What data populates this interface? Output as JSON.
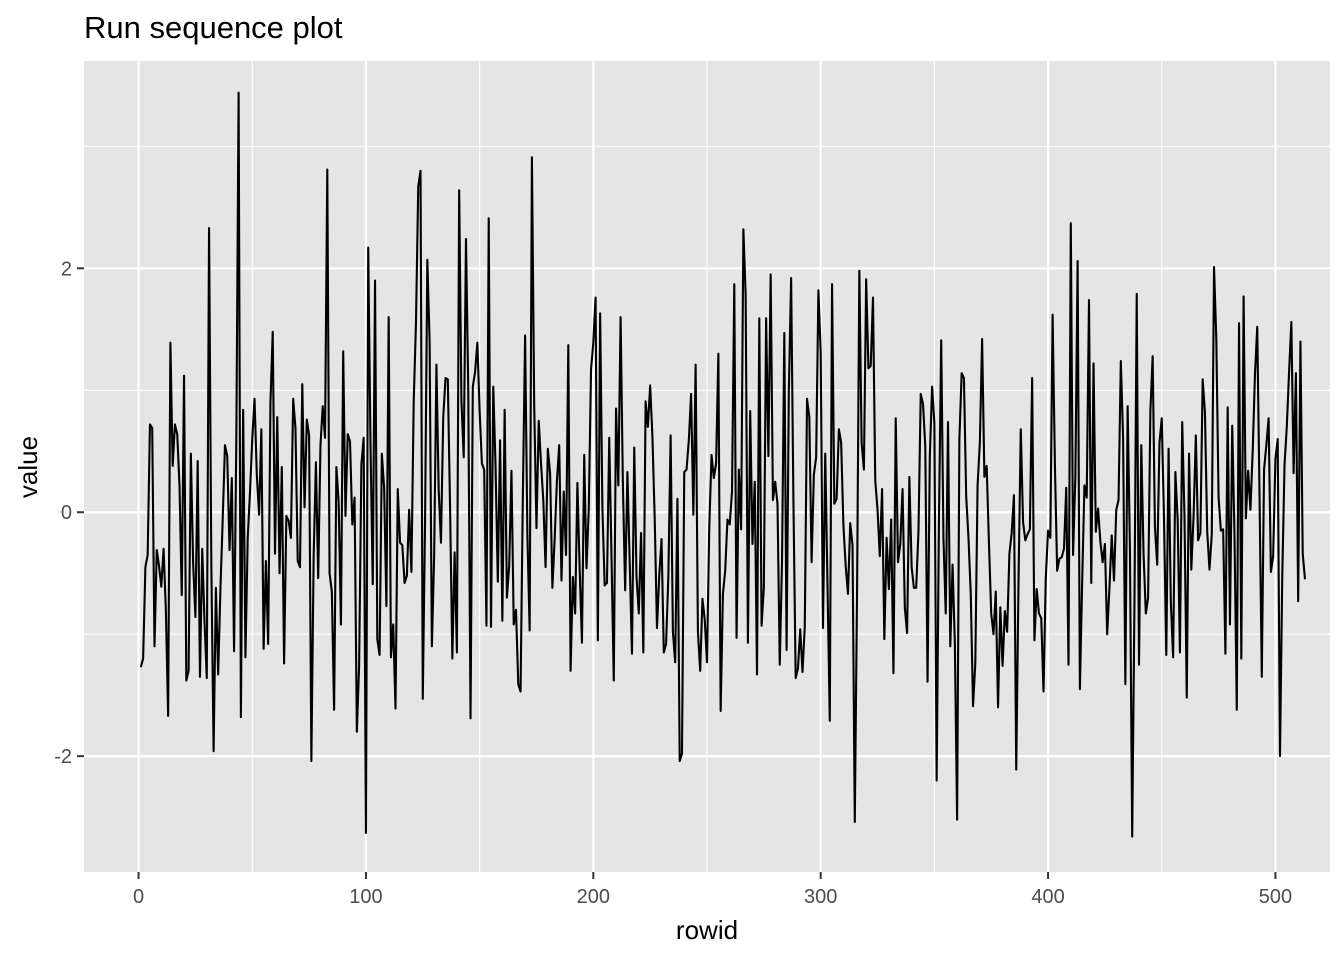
{
  "chart_data": {
    "type": "line",
    "title": "Run sequence plot",
    "xlabel": "rowid",
    "ylabel": "value",
    "xlim": [
      -24,
      524
    ],
    "ylim": [
      -2.95,
      3.7
    ],
    "x_ticks": [
      0,
      100,
      200,
      300,
      400,
      500
    ],
    "x_tick_labels": [
      "0",
      "100",
      "200",
      "300",
      "400",
      "500"
    ],
    "y_ticks": [
      -2,
      0,
      2
    ],
    "y_tick_labels": [
      "-2",
      "0",
      "2"
    ],
    "grid": true,
    "legend": "none",
    "colors": {
      "panel_background": "#e5e5e5",
      "grid_line": "#ffffff",
      "series_line": "#000000",
      "tick_label": "#4d4d4d",
      "tick_mark": "#333333"
    },
    "series": [
      {
        "color": "#000000",
        "x_start": 1,
        "x_step": 1,
        "values": [
          -1.27,
          -1.2,
          -0.45,
          -0.35,
          0.72,
          0.69,
          -1.1,
          -0.31,
          -0.44,
          -0.61,
          -0.3,
          -0.8,
          -1.67,
          1.39,
          0.38,
          0.72,
          0.64,
          0.22,
          -0.68,
          1.12,
          -1.38,
          -1.3,
          0.48,
          -0.42,
          -0.86,
          0.42,
          -1.35,
          -0.3,
          -0.9,
          -1.36,
          2.33,
          -0.43,
          -1.96,
          -0.62,
          -1.33,
          -0.63,
          -0.06,
          0.55,
          0.46,
          -0.31,
          0.28,
          -1.14,
          0.61,
          3.44,
          -1.68,
          0.84,
          -1.19,
          -0.21,
          0.16,
          0.6,
          0.93,
          0.31,
          -0.02,
          0.68,
          -1.12,
          -0.4,
          -1.08,
          0.9,
          1.48,
          -0.34,
          0.78,
          -0.5,
          0.37,
          -1.24,
          -0.03,
          -0.07,
          -0.21,
          0.93,
          0.69,
          -0.4,
          -0.45,
          1.05,
          0.04,
          0.76,
          0.63,
          -2.04,
          -0.36,
          0.41,
          -0.54,
          0.55,
          0.87,
          0.61,
          2.81,
          -0.5,
          -0.65,
          -1.62,
          0.37,
          0.08,
          -0.92,
          1.32,
          -0.03,
          0.64,
          0.58,
          -0.1,
          0.12,
          -1.8,
          -1.26,
          0.39,
          0.61,
          -2.63,
          2.17,
          0.56,
          -0.59,
          1.9,
          -1.04,
          -1.17,
          0.48,
          0.2,
          -0.77,
          1.6,
          -1.19,
          -0.92,
          -1.61,
          0.19,
          -0.25,
          -0.27,
          -0.58,
          -0.52,
          0.02,
          -0.49,
          0.9,
          1.55,
          2.67,
          2.8,
          -1.53,
          -0.07,
          2.07,
          1.4,
          -1.1,
          -0.36,
          1.21,
          0.18,
          -0.25,
          0.78,
          1.1,
          1.09,
          0.04,
          -1.2,
          -0.33,
          -1.15,
          2.64,
          0.91,
          0.45,
          2.24,
          1.0,
          -1.69,
          1.03,
          1.15,
          1.39,
          0.83,
          0.4,
          0.35,
          -0.93,
          2.41,
          -0.94,
          1.03,
          0.38,
          -0.57,
          0.59,
          -0.89,
          0.84,
          -0.7,
          -0.44,
          0.34,
          -0.92,
          -0.8,
          -1.41,
          -1.47,
          0.12,
          1.45,
          -0.18,
          -0.97,
          2.91,
          0.88,
          -0.13,
          0.75,
          0.4,
          0.1,
          -0.45,
          0.52,
          0.32,
          -0.62,
          -0.22,
          0.26,
          0.55,
          -0.56,
          0.17,
          -0.35,
          1.37,
          -1.3,
          -0.53,
          -0.83,
          0.24,
          -0.47,
          -1.07,
          0.47,
          -0.46,
          0.03,
          1.17,
          1.39,
          1.76,
          -1.05,
          1.63,
          0.03,
          -0.6,
          -0.58,
          0.61,
          -0.37,
          -1.38,
          0.85,
          0.22,
          1.6,
          0.24,
          -0.64,
          0.33,
          -0.41,
          -1.16,
          0.53,
          -0.53,
          -0.83,
          -0.17,
          -1.15,
          0.91,
          0.7,
          1.04,
          0.62,
          -0.05,
          -0.95,
          -0.52,
          -0.22,
          -1.15,
          -1.08,
          -0.53,
          0.63,
          -0.98,
          -1.23,
          0.11,
          -2.04,
          -1.98,
          0.33,
          0.35,
          0.59,
          0.97,
          -0.02,
          1.21,
          -0.98,
          -1.3,
          -0.71,
          -0.88,
          -1.23,
          -0.12,
          0.47,
          0.28,
          0.4,
          1.3,
          -1.63,
          -0.67,
          -0.48,
          -0.06,
          -0.1,
          0.17,
          1.87,
          -1.03,
          0.35,
          -0.14,
          2.32,
          1.78,
          -1.07,
          0.83,
          -0.26,
          0.25,
          -1.33,
          1.59,
          -0.93,
          -0.62,
          1.59,
          0.46,
          1.95,
          0.1,
          0.25,
          0.07,
          -1.25,
          -0.4,
          1.47,
          -1.13,
          1.0,
          1.92,
          0.11,
          -1.36,
          -1.28,
          -0.96,
          -1.31,
          -0.94,
          0.93,
          0.78,
          -0.41,
          0.31,
          0.45,
          1.82,
          1.31,
          -0.95,
          0.48,
          -0.6,
          -1.71,
          1.87,
          0.07,
          0.11,
          0.68,
          0.57,
          -0.11,
          -0.44,
          -0.67,
          -0.09,
          -0.27,
          -2.54,
          -0.64,
          1.98,
          0.57,
          0.35,
          1.91,
          1.18,
          1.2,
          1.76,
          0.26,
          0.02,
          -0.36,
          0.19,
          -1.04,
          -0.21,
          -0.63,
          -0.06,
          -1.32,
          0.77,
          -0.41,
          -0.26,
          0.19,
          -0.78,
          -0.99,
          0.29,
          -0.45,
          -0.62,
          -0.62,
          -0.16,
          0.97,
          0.89,
          0.54,
          -1.39,
          0.46,
          1.03,
          0.73,
          -2.2,
          -0.09,
          1.41,
          -0.22,
          -0.83,
          0.74,
          -1.1,
          -0.43,
          -1.07,
          -2.52,
          0.6,
          1.14,
          1.1,
          0.13,
          -0.21,
          -0.67,
          -1.59,
          -1.24,
          0.22,
          0.57,
          1.42,
          0.29,
          0.38,
          -0.25,
          -0.83,
          -1.0,
          -0.65,
          -1.6,
          -0.78,
          -1.26,
          -0.81,
          -0.98,
          -0.34,
          -0.17,
          0.14,
          -2.11,
          -0.58,
          0.68,
          -0.08,
          -0.23,
          -0.18,
          -0.14,
          1.1,
          -1.05,
          -0.63,
          -0.83,
          -0.87,
          -1.47,
          -0.54,
          -0.15,
          -0.21,
          1.62,
          0.4,
          -0.48,
          -0.38,
          -0.37,
          -0.3,
          0.2,
          -1.25,
          2.37,
          -0.35,
          0.28,
          2.06,
          -1.45,
          -0.57,
          0.22,
          0.12,
          1.74,
          -0.58,
          1.22,
          -0.16,
          0.03,
          -0.24,
          -0.41,
          -0.26,
          -1.0,
          -0.62,
          -0.19,
          -0.56,
          0.02,
          0.1,
          1.24,
          0.61,
          -1.41,
          0.87,
          -0.29,
          -2.66,
          -0.74,
          1.79,
          -1.25,
          0.55,
          -0.34,
          -0.83,
          -0.7,
          0.83,
          1.28,
          -0.12,
          -0.43,
          0.57,
          0.77,
          -0.06,
          -1.17,
          0.52,
          -0.74,
          -1.19,
          0.33,
          -0.06,
          -1.15,
          0.74,
          -0.03,
          -1.52,
          0.48,
          -0.47,
          -0.03,
          0.63,
          -0.23,
          -0.17,
          1.09,
          0.82,
          -0.16,
          -0.47,
          -0.18,
          2.01,
          1.42,
          0.12,
          -0.15,
          -0.14,
          -1.16,
          0.86,
          -0.92,
          0.71,
          -0.19,
          -1.62,
          1.55,
          -1.2,
          1.77,
          -0.05,
          0.34,
          0.02,
          0.5,
          1.13,
          1.52,
          0.14,
          -1.35,
          0.35,
          0.55,
          0.77,
          -0.49,
          -0.36,
          0.44,
          0.6,
          -2.0,
          -0.53,
          0.39,
          0.7,
          1.15,
          1.56,
          0.32,
          1.14,
          -0.73,
          1.4,
          -0.34,
          -0.55
        ]
      }
    ]
  }
}
